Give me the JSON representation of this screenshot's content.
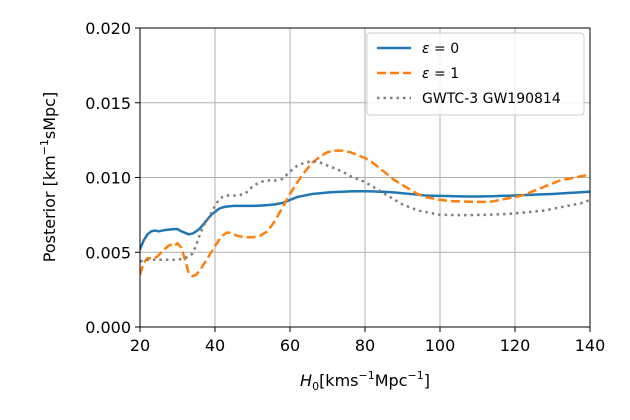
{
  "chart_data": {
    "type": "line",
    "title": "",
    "xlabel": "H₀[kms⁻¹Mpc⁻¹]",
    "xlabel_parts": {
      "main": "H",
      "sub": "0",
      "rest1": "[kms",
      "sup1": "−1",
      "rest2": "Mpc",
      "sup2": "−1",
      "rest3": "]"
    },
    "ylabel": "Posterior [km⁻¹sMpc]",
    "ylabel_parts": {
      "before": "Posterior [km",
      "sup": "−1",
      "after": "sMpc]"
    },
    "xlim": [
      20,
      140
    ],
    "ylim": [
      0.0,
      0.02
    ],
    "xticks": [
      20,
      40,
      60,
      80,
      100,
      120,
      140
    ],
    "xtick_labels": [
      "20",
      "40",
      "60",
      "80",
      "100",
      "120",
      "140"
    ],
    "yticks": [
      0.0,
      0.005,
      0.01,
      0.015,
      0.02
    ],
    "ytick_labels": [
      "0.000",
      "0.005",
      "0.010",
      "0.015",
      "0.020"
    ],
    "grid": true,
    "legend_position": "top-right",
    "series": [
      {
        "name": "ε = 0",
        "legend_var": "ε",
        "legend_rest": " = 0",
        "color": "#1f77b4",
        "style": "solid",
        "x": [
          20,
          21,
          22,
          23,
          24,
          25,
          26,
          27,
          28,
          29,
          30,
          31,
          32,
          33,
          34,
          35,
          36,
          37,
          38,
          39,
          40,
          41,
          42,
          43,
          44,
          45,
          46,
          48,
          50,
          52,
          54,
          56,
          58,
          60,
          62,
          64,
          66,
          68,
          70,
          72,
          74,
          76,
          78,
          80,
          82,
          84,
          86,
          88,
          90,
          92,
          94,
          96,
          98,
          100,
          102,
          104,
          106,
          108,
          110,
          112,
          114,
          116,
          118,
          120,
          122,
          124,
          126,
          128,
          130,
          132,
          134,
          136,
          138,
          140
        ],
        "values": [
          0.0052,
          0.0058,
          0.0062,
          0.0064,
          0.00645,
          0.0064,
          0.00645,
          0.0065,
          0.00652,
          0.00655,
          0.00655,
          0.0064,
          0.0063,
          0.0062,
          0.00625,
          0.0064,
          0.0066,
          0.0069,
          0.0072,
          0.0075,
          0.0077,
          0.0079,
          0.008,
          0.00805,
          0.00808,
          0.0081,
          0.0081,
          0.0081,
          0.0081,
          0.00812,
          0.00815,
          0.0082,
          0.0083,
          0.0085,
          0.0087,
          0.0088,
          0.0089,
          0.00895,
          0.009,
          0.00903,
          0.00905,
          0.00907,
          0.00908,
          0.00908,
          0.00907,
          0.00905,
          0.00903,
          0.009,
          0.00895,
          0.0089,
          0.00885,
          0.0088,
          0.00878,
          0.00877,
          0.00876,
          0.00875,
          0.00874,
          0.00873,
          0.00873,
          0.00874,
          0.00875,
          0.00877,
          0.00878,
          0.0088,
          0.00882,
          0.00884,
          0.00886,
          0.00888,
          0.0089,
          0.00893,
          0.00896,
          0.00899,
          0.00902,
          0.00905
        ]
      },
      {
        "name": "ε = 1",
        "legend_var": "ε",
        "legend_rest": " = 1",
        "color": "#ff7f0e",
        "style": "dashed",
        "x": [
          20,
          21,
          22,
          23,
          24,
          25,
          26,
          27,
          28,
          29,
          30,
          31,
          32,
          33,
          34,
          35,
          36,
          37,
          38,
          39,
          40,
          41,
          42,
          43,
          44,
          46,
          48,
          50,
          52,
          54,
          56,
          58,
          60,
          62,
          64,
          66,
          68,
          70,
          72,
          74,
          76,
          78,
          80,
          82,
          84,
          86,
          88,
          90,
          92,
          94,
          96,
          98,
          100,
          102,
          104,
          106,
          108,
          110,
          112,
          114,
          116,
          118,
          120,
          122,
          124,
          126,
          128,
          130,
          132,
          134,
          136,
          138,
          140
        ],
        "values": [
          0.0035,
          0.0043,
          0.0046,
          0.0046,
          0.0046,
          0.0048,
          0.0051,
          0.0053,
          0.0055,
          0.0054,
          0.0056,
          0.0053,
          0.0045,
          0.0036,
          0.0034,
          0.0035,
          0.0038,
          0.0042,
          0.0046,
          0.005,
          0.0054,
          0.0058,
          0.0061,
          0.0063,
          0.0063,
          0.0061,
          0.006,
          0.006,
          0.0061,
          0.0064,
          0.0071,
          0.008,
          0.0089,
          0.0097,
          0.0104,
          0.011,
          0.0114,
          0.0117,
          0.0118,
          0.0118,
          0.0117,
          0.0115,
          0.0113,
          0.011,
          0.0106,
          0.0102,
          0.0098,
          0.0095,
          0.0092,
          0.0089,
          0.0087,
          0.0086,
          0.0085,
          0.00845,
          0.0084,
          0.0084,
          0.00838,
          0.00837,
          0.00837,
          0.0084,
          0.0085,
          0.0086,
          0.0087,
          0.0088,
          0.009,
          0.0092,
          0.0094,
          0.0096,
          0.0098,
          0.0099,
          0.01,
          0.0101,
          0.0102
        ]
      },
      {
        "name": "GWTC-3 GW190814",
        "legend_var": "",
        "legend_rest": "GWTC-3 GW190814",
        "color": "#7f7f7f",
        "style": "dotted",
        "x": [
          20,
          22,
          24,
          26,
          28,
          30,
          32,
          34,
          35,
          36,
          37,
          38,
          39,
          40,
          41,
          42,
          43,
          44,
          46,
          48,
          50,
          52,
          54,
          56,
          58,
          60,
          62,
          64,
          66,
          68,
          70,
          72,
          74,
          76,
          78,
          80,
          82,
          84,
          86,
          88,
          90,
          92,
          94,
          96,
          98,
          100,
          102,
          104,
          106,
          108,
          110,
          112,
          114,
          116,
          118,
          120,
          122,
          124,
          126,
          128,
          130,
          132,
          134,
          136,
          138,
          140
        ],
        "values": [
          0.0044,
          0.0045,
          0.0045,
          0.0045,
          0.0045,
          0.0045,
          0.0046,
          0.0049,
          0.0055,
          0.0062,
          0.0068,
          0.0072,
          0.0076,
          0.0081,
          0.0085,
          0.0087,
          0.0088,
          0.0088,
          0.0088,
          0.0089,
          0.0094,
          0.0097,
          0.0098,
          0.0098,
          0.0099,
          0.0104,
          0.0108,
          0.011,
          0.0111,
          0.011,
          0.0108,
          0.0106,
          0.0104,
          0.0101,
          0.0099,
          0.0097,
          0.0094,
          0.0091,
          0.0088,
          0.0085,
          0.0082,
          0.008,
          0.0078,
          0.0077,
          0.0076,
          0.0075,
          0.0075,
          0.00748,
          0.00748,
          0.00748,
          0.0075,
          0.0075,
          0.00752,
          0.00754,
          0.00756,
          0.0076,
          0.00765,
          0.0077,
          0.00775,
          0.0078,
          0.0079,
          0.008,
          0.0081,
          0.0082,
          0.0083,
          0.0085
        ]
      }
    ]
  }
}
